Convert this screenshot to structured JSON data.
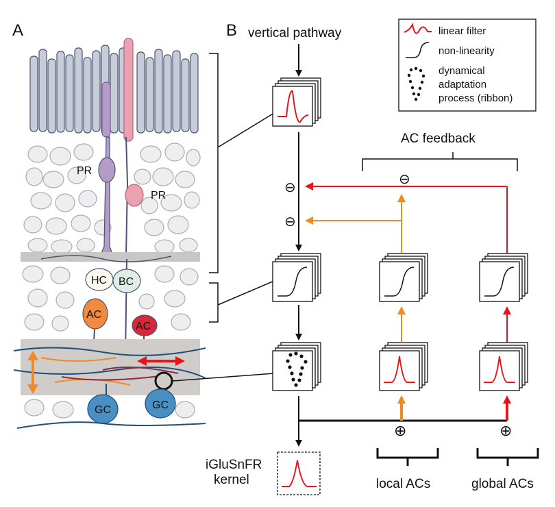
{
  "panel_a": {
    "label": "A",
    "cells": {
      "pr1": "PR",
      "pr2": "PR",
      "hc": "HC",
      "bc": "BC",
      "ac1": "AC",
      "ac2": "AC",
      "gc1": "GC",
      "gc2": "GC"
    }
  },
  "panel_b": {
    "label": "B",
    "vertical_pathway": "vertical pathway",
    "ac_feedback": "AC feedback",
    "iglusnfr_line1": "iGluSnFR",
    "iglusnfr_line2": "kernel",
    "local_acs": "local ACs",
    "global_acs": "global ACs",
    "minus_sign": "⊖",
    "plus_sign": "⊕"
  },
  "legend": {
    "linear_filter": "linear filter",
    "non_linearity": "non-linearity",
    "adaptation_line1": "dynamical",
    "adaptation_line2": "adaptation",
    "adaptation_line3": "process (ribbon)"
  },
  "colors": {
    "red": "#e8141c",
    "orange": "#f08a24",
    "black": "#111111",
    "pr_purple": "#b49cc9",
    "pr_pink": "#e8a2b0",
    "ac_orange": "#f08a3c",
    "ac_red": "#d8283a",
    "gc_blue": "#4a8fc4"
  }
}
